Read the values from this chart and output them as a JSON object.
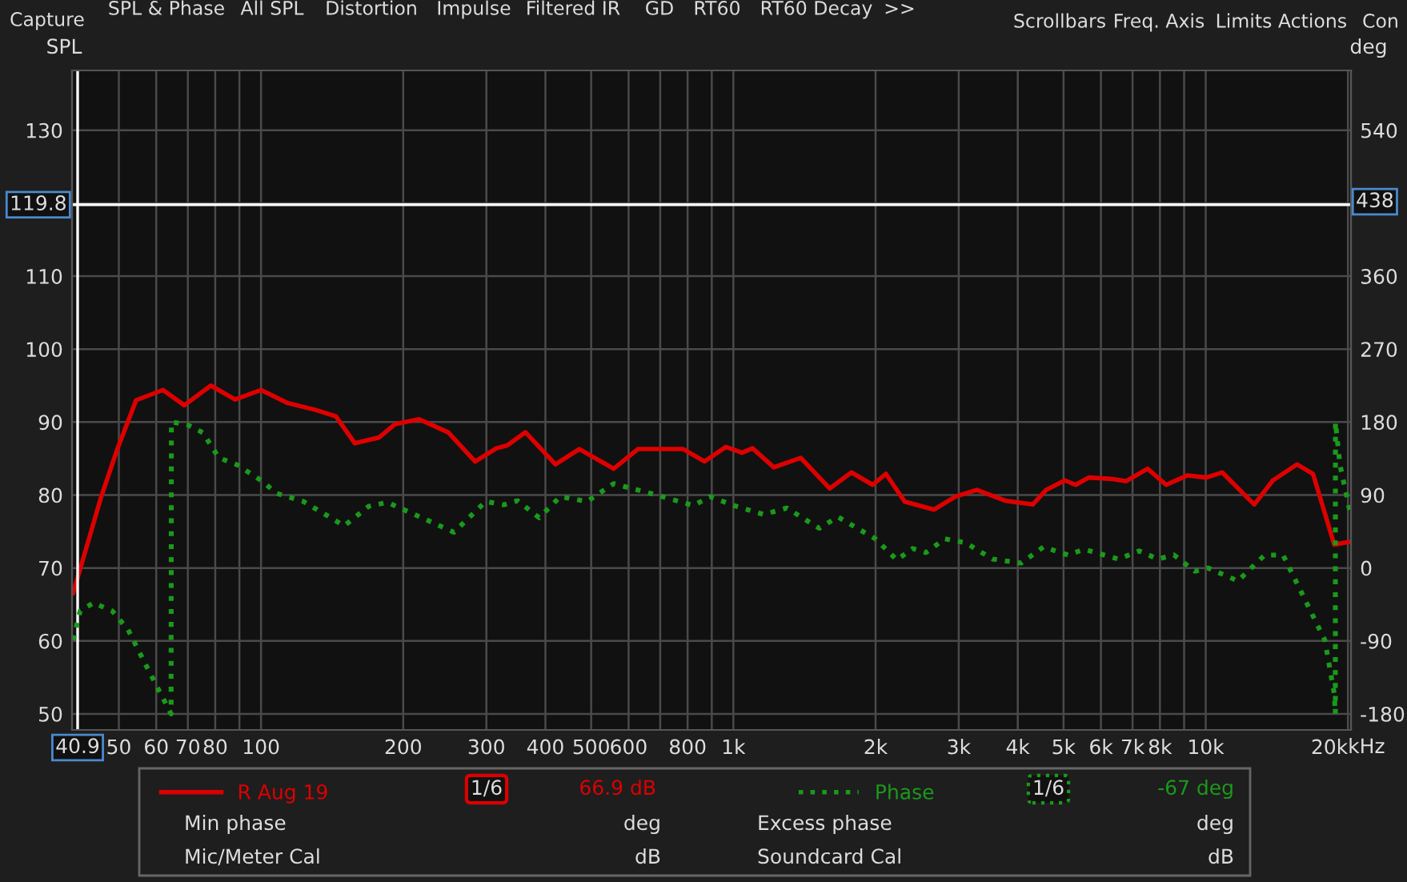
{
  "chart_data": {
    "type": "line",
    "ylabel": "SPL",
    "y2label": "deg",
    "log": "x",
    "grid": true,
    "legend": "bottom",
    "xlim": [
      39.8,
      20300
    ],
    "ylim": [
      47.8,
      138.2
    ],
    "y2lim": [
      -199.8,
      613.8
    ],
    "xticks": [
      50,
      60,
      70,
      80,
      {
        "value": 90,
        "label": null
      },
      100,
      200,
      300,
      400,
      500,
      600,
      {
        "value": 700,
        "label": null
      },
      800,
      {
        "value": 900,
        "label": null
      },
      {
        "value": 1000,
        "label": "1k"
      },
      {
        "value": 2000,
        "label": "2k"
      },
      {
        "value": 3000,
        "label": "3k"
      },
      {
        "value": 4000,
        "label": "4k"
      },
      {
        "value": 5000,
        "label": "5k"
      },
      {
        "value": 6000,
        "label": "6k"
      },
      {
        "value": 7000,
        "label": "7k"
      },
      {
        "value": 8000,
        "label": "8k"
      },
      {
        "value": 9000,
        "label": null
      },
      {
        "value": 10000,
        "label": "10k"
      },
      {
        "value": 20000,
        "label": "20k"
      }
    ],
    "xlabel": "kHz",
    "yticks": [
      50,
      60,
      70,
      80,
      90,
      100,
      110,
      {
        "value": 120,
        "label": null
      },
      130
    ],
    "y2ticks": [
      -180,
      -90,
      0,
      90,
      180,
      270,
      360,
      {
        "value": 450,
        "label": null
      },
      540
    ],
    "ref_lines": [
      {
        "axis": "y",
        "value": 119.8,
        "label": "119.8",
        "color": "#ffffff"
      },
      {
        "axis": "x",
        "value": 40.9,
        "label": "40.9",
        "color": "#ffffff"
      }
    ],
    "series": [
      {
        "name": "R Aug 19",
        "color": "#dd0000",
        "axis": "y",
        "line_style": "solid",
        "x": [
          40,
          45.9,
          49.7,
          54.4,
          62,
          68.8,
          78.3,
          88.1,
          100,
          114,
          130,
          144,
          158,
          178,
          192,
          216,
          249,
          284,
          315,
          332,
          363,
          420,
          472,
          558,
          628,
          783,
          869,
          964,
          1043,
          1098,
          1218,
          1388,
          1600,
          1778,
          1972,
          2103,
          2305,
          2660,
          2953,
          3275,
          3777,
          4303,
          4592,
          5031,
          5303,
          5656,
          6358,
          6787,
          7532,
          8246,
          9155,
          10030,
          10840,
          12670,
          13870,
          15600,
          16870,
          18710,
          20230
        ],
        "values": [
          66.5,
          79.8,
          86.4,
          93.0,
          94.4,
          92.3,
          95.0,
          93.1,
          94.4,
          92.6,
          91.7,
          90.8,
          87.1,
          87.9,
          89.7,
          90.4,
          88.6,
          84.6,
          86.4,
          86.8,
          88.6,
          84.2,
          86.3,
          83.6,
          86.3,
          86.3,
          84.6,
          86.6,
          85.8,
          86.4,
          83.8,
          85.1,
          80.9,
          83.1,
          81.4,
          82.9,
          79.1,
          78.0,
          79.8,
          80.7,
          79.2,
          78.7,
          80.7,
          82.0,
          81.4,
          82.4,
          82.2,
          81.9,
          83.6,
          81.4,
          82.7,
          82.4,
          83.1,
          78.7,
          82.0,
          84.2,
          82.9,
          73.2,
          73.6
        ]
      },
      {
        "name": "Phase",
        "color": "#1a9a1a",
        "axis": "y2",
        "line_style": "dotted",
        "x": [
          40,
          41.4,
          44.2,
          48.4,
          52.3,
          57.3,
          64.5,
          64.6,
          69.7,
          75.3,
          81.4,
          89.2,
          100,
          108,
          123,
          150,
          169,
          185,
          219,
          256,
          299,
          327,
          349,
          388,
          430,
          490,
          558,
          688,
          823,
          892,
          1015,
          1159,
          1297,
          1520,
          1664,
          1998,
          2218,
          2398,
          2556,
          2803,
          3104,
          3537,
          4067,
          4535,
          5108,
          5530,
          6535,
          7229,
          7920,
          8562,
          9484,
          10110,
          11700,
          13330,
          14580,
          15940,
          17870,
          18710,
          18810,
          18820,
          19230,
          20230
        ],
        "values": [
          -89,
          -53,
          -43,
          -53,
          -76,
          -122,
          -180,
          180,
          177,
          167,
          136,
          127,
          108,
          92,
          82,
          52,
          76,
          81,
          62,
          44,
          82,
          78,
          83,
          62,
          88,
          82,
          104,
          90,
          77,
          88,
          76,
          66,
          74,
          49,
          63,
          36,
          10,
          24,
          19,
          36,
          31,
          11,
          6,
          26,
          16,
          23,
          11,
          21,
          11,
          16,
          -4,
          0,
          -16,
          16,
          16,
          -30,
          -89,
          -155,
          -180,
          180,
          128,
          68
        ]
      }
    ],
    "annotations": [
      "Capture",
      "SPL & Phase",
      "All SPL",
      "Distortion",
      "Impulse",
      "Filtered IR",
      "GD",
      "RT60",
      "RT60 Decay",
      ">>",
      "Scrollbars",
      "Freq. Axis",
      "Limits",
      "Actions",
      "Con",
      "1/6",
      "66.9 dB",
      "1/6",
      "-67 deg",
      "Min phase",
      "deg",
      "Excess phase",
      "deg",
      "Mic/Meter Cal",
      "dB",
      "Soundcard Cal",
      "dB",
      "438"
    ]
  }
}
